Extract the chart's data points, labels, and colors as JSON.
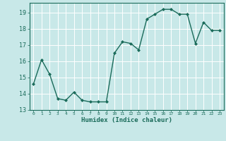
{
  "x": [
    0,
    1,
    2,
    3,
    4,
    5,
    6,
    7,
    8,
    9,
    10,
    11,
    12,
    13,
    14,
    15,
    16,
    17,
    18,
    19,
    20,
    21,
    22,
    23
  ],
  "y": [
    14.6,
    16.1,
    15.2,
    13.7,
    13.6,
    14.1,
    13.6,
    13.5,
    13.5,
    13.5,
    16.5,
    17.2,
    17.1,
    16.7,
    18.6,
    18.9,
    19.2,
    19.2,
    18.9,
    18.9,
    17.1,
    18.4,
    17.9,
    17.9
  ],
  "line_color": "#1a6b5a",
  "bg_color": "#c8e8e8",
  "grid_color": "#ffffff",
  "xlabel": "Humidex (Indice chaleur)",
  "ylim": [
    13,
    19.6
  ],
  "xlim": [
    -0.5,
    23.5
  ],
  "yticks": [
    13,
    14,
    15,
    16,
    17,
    18,
    19
  ],
  "xtick_labels": [
    "0",
    "1",
    "2",
    "3",
    "4",
    "5",
    "6",
    "7",
    "8",
    "9",
    "10",
    "11",
    "12",
    "13",
    "14",
    "15",
    "16",
    "17",
    "18",
    "19",
    "20",
    "21",
    "22",
    "23"
  ]
}
